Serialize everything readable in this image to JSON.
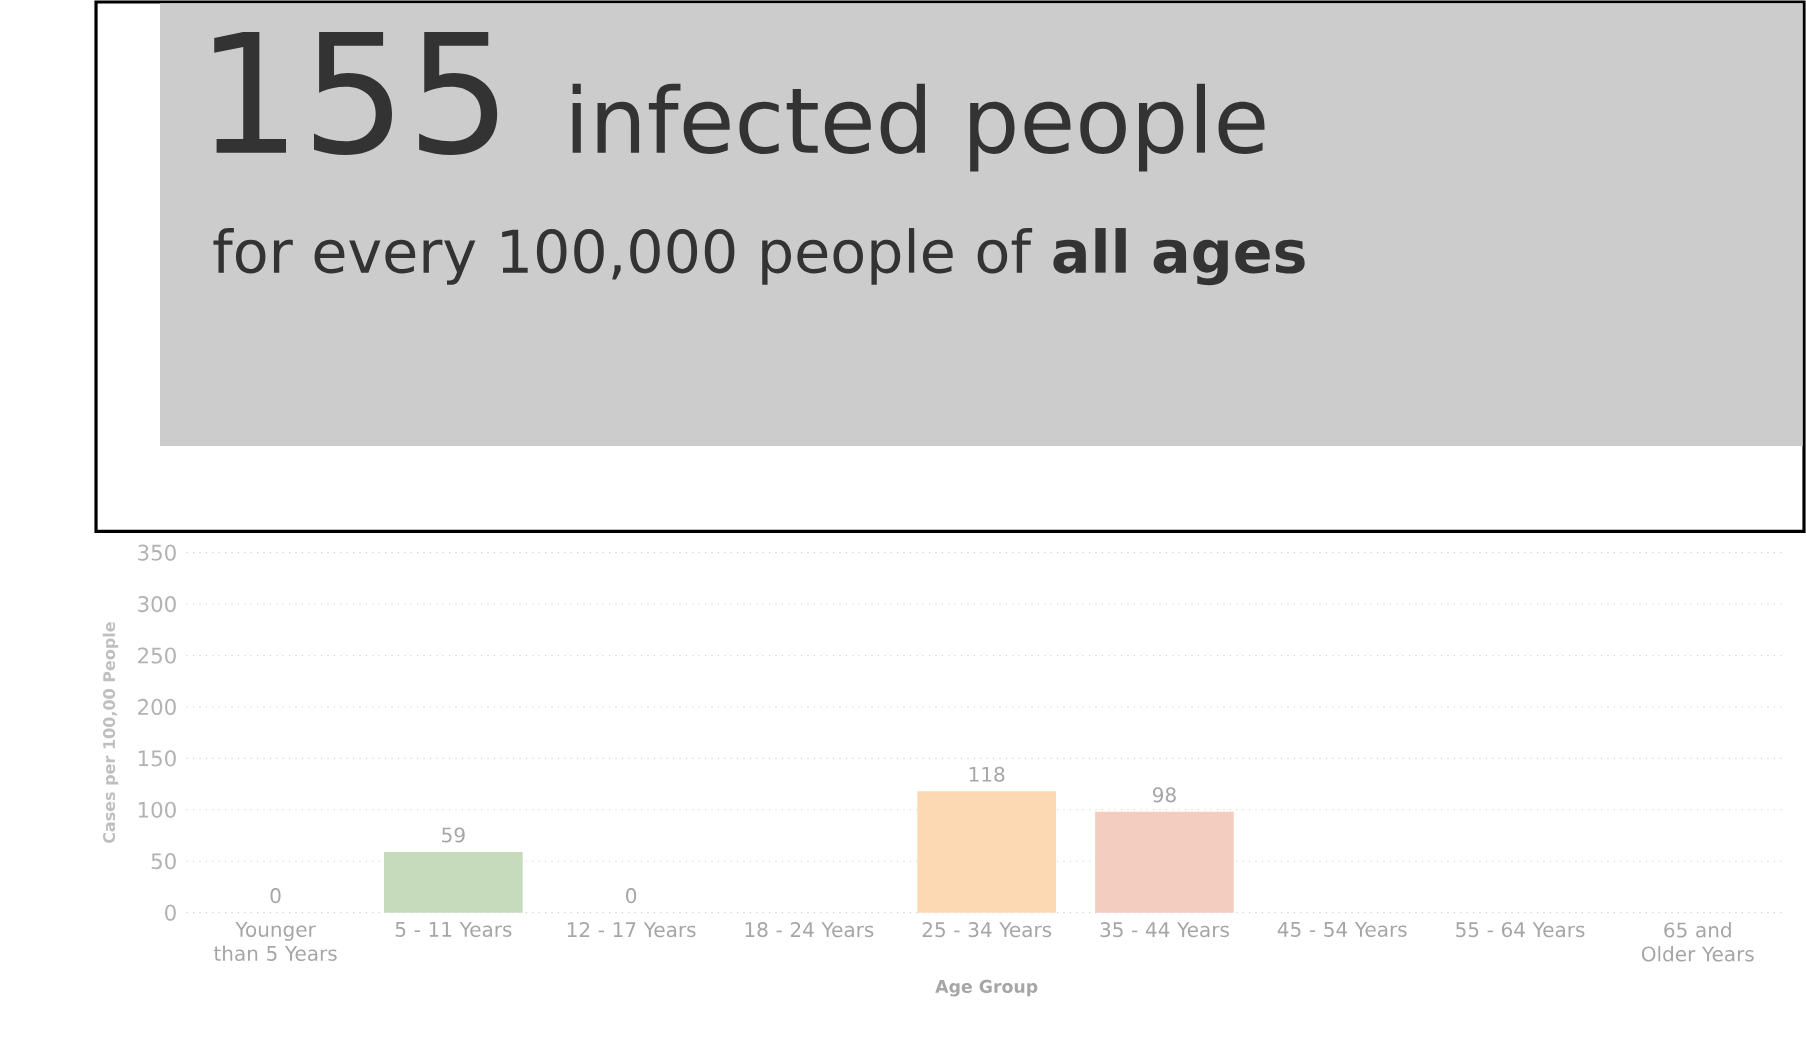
{
  "chart_data": {
    "type": "bar",
    "xlabel": "Age Group",
    "ylabel": "Cases per 100,00 People",
    "categories": [
      "Younger than 5 Years",
      "5 - 11 Years",
      "12 - 17 Years",
      "18 - 24 Years",
      "25 - 34 Years",
      "35 - 44 Years",
      "45 - 54 Years",
      "55 - 64 Years",
      "65 and Older Years"
    ],
    "values": [
      0,
      59,
      0,
      null,
      118,
      98,
      null,
      null,
      null
    ],
    "colors": [
      "#c6dbbc",
      "#c6dbbc",
      "#c6dbbc",
      "#aeb8bf",
      "#fcd9b3",
      "#f3cdc0",
      "#e0c0bd",
      "#c9c9cb",
      "#e8e8e8"
    ],
    "ylim": [
      0,
      350
    ],
    "yticks": [
      0,
      50,
      100,
      150,
      200,
      250,
      300,
      350
    ],
    "grid": "y",
    "data_labels": true,
    "annotations": [
      "155",
      "infected people",
      "for every 100,000 people of **all ages**"
    ]
  }
}
